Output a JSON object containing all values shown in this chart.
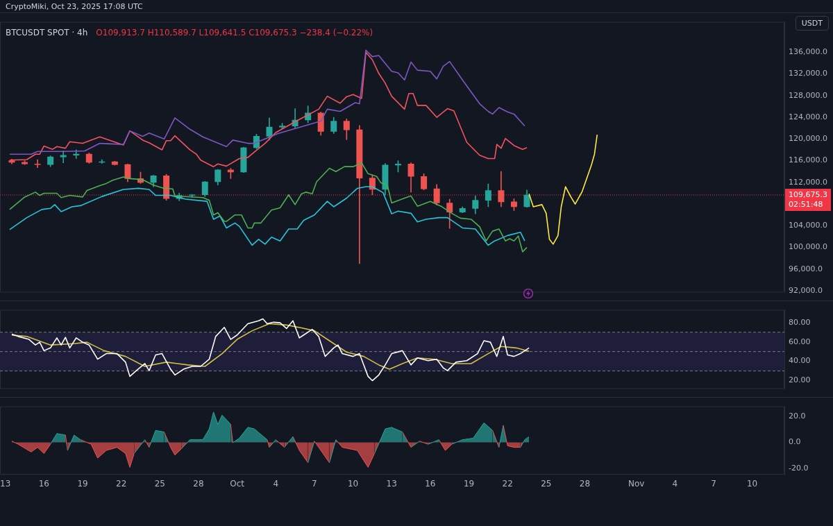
{
  "chart_data": [
    {
      "type": "candlestick",
      "title": "BTCUSDT SPOT · 4h",
      "subtitle": "CryptoMiki, Oct 23, 2025 17:08 UTC",
      "ylabel": "USDT",
      "annotations": [
        "O109,913.7 H110,589.7 L109,641.5 C109,675.3 −238.4 (−0.22%)",
        "02:51:48"
      ],
      "x": [
        "2025-09-13T12:00",
        "2025-09-14T12:00",
        "2025-09-15T12:00",
        "2025-09-16T12:00",
        "2025-09-17T12:00",
        "2025-09-18T12:00",
        "2025-09-19T12:00",
        "2025-09-20T12:00",
        "2025-09-21T12:00",
        "2025-09-22T12:00",
        "2025-09-23T12:00",
        "2025-09-24T12:00",
        "2025-09-25T12:00",
        "2025-09-26T12:00",
        "2025-09-27T12:00",
        "2025-09-28T12:00",
        "2025-09-29T12:00",
        "2025-09-30T12:00",
        "2025-10-01T12:00",
        "2025-10-02T12:00",
        "2025-10-03T12:00",
        "2025-10-04T12:00",
        "2025-10-05T12:00",
        "2025-10-06T12:00",
        "2025-10-07T12:00",
        "2025-10-08T12:00",
        "2025-10-09T12:00",
        "2025-10-10T12:00",
        "2025-10-11T12:00",
        "2025-10-12T12:00",
        "2025-10-13T12:00",
        "2025-10-14T12:00",
        "2025-10-15T12:00",
        "2025-10-16T12:00",
        "2025-10-17T12:00",
        "2025-10-18T12:00",
        "2025-10-19T12:00",
        "2025-10-20T12:00",
        "2025-10-21T12:00",
        "2025-10-22T12:00",
        "2025-10-23T12:00"
      ],
      "ohlc": [
        [
          116000,
          116300,
          115400,
          115700
        ],
        [
          115700,
          116000,
          115300,
          115400
        ],
        [
          115400,
          116200,
          114700,
          115300
        ],
        [
          115300,
          116900,
          114900,
          116700
        ],
        [
          116700,
          117800,
          115600,
          117000
        ],
        [
          117000,
          118000,
          116400,
          117200
        ],
        [
          117200,
          117400,
          115500,
          115700
        ],
        [
          115700,
          116200,
          115500,
          115800
        ],
        [
          115800,
          115900,
          115200,
          115300
        ],
        [
          115300,
          115400,
          112100,
          112700
        ],
        [
          112700,
          113900,
          111800,
          112000
        ],
        [
          112000,
          113300,
          111200,
          113200
        ],
        [
          113200,
          113500,
          108700,
          109000
        ],
        [
          109000,
          110000,
          108600,
          109600
        ],
        [
          109600,
          109800,
          109200,
          109700
        ],
        [
          109700,
          112200,
          109400,
          112100
        ],
        [
          112100,
          114400,
          111500,
          114300
        ],
        [
          114300,
          114600,
          112700,
          113900
        ],
        [
          113900,
          118500,
          113800,
          118400
        ],
        [
          118400,
          120900,
          118200,
          120500
        ],
        [
          120500,
          123900,
          119800,
          122200
        ],
        [
          122200,
          122900,
          121900,
          122400
        ],
        [
          122400,
          125600,
          122000,
          123500
        ],
        [
          123500,
          126100,
          123000,
          124800
        ],
        [
          124800,
          125000,
          120700,
          121400
        ],
        [
          121400,
          124000,
          121000,
          123300
        ],
        [
          123300,
          123700,
          119900,
          121700
        ],
        [
          121700,
          122500,
          97000,
          112800
        ],
        [
          112800,
          113400,
          109700,
          110700
        ],
        [
          110700,
          115500,
          109700,
          115200
        ],
        [
          115200,
          116000,
          113900,
          115400
        ],
        [
          115400,
          115600,
          110200,
          113100
        ],
        [
          113100,
          113600,
          110600,
          110800
        ],
        [
          110800,
          111600,
          107800,
          108200
        ],
        [
          108200,
          108900,
          103500,
          106500
        ],
        [
          106500,
          107500,
          106400,
          107200
        ],
        [
          107200,
          109500,
          106200,
          108700
        ],
        [
          108700,
          111700,
          107500,
          110500
        ],
        [
          110500,
          114000,
          107500,
          108400
        ],
        [
          108400,
          109000,
          106800,
          107500
        ],
        [
          107500,
          110600,
          107400,
          109675.3
        ]
      ],
      "colors": [
        "#ef5350",
        "#ef5350",
        "#ef5350",
        "#26a69a",
        "#26a69a",
        "#26a69a",
        "#ef5350",
        "#26a69a",
        "#ef5350",
        "#ef5350",
        "#ef5350",
        "#26a69a",
        "#ef5350",
        "#26a69a",
        "#26a69a",
        "#26a69a",
        "#26a69a",
        "#ef5350",
        "#26a69a",
        "#26a69a",
        "#26a69a",
        "#26a69a",
        "#26a69a",
        "#26a69a",
        "#ef5350",
        "#26a69a",
        "#ef5350",
        "#ef5350",
        "#ef5350",
        "#26a69a",
        "#26a69a",
        "#ef5350",
        "#ef5350",
        "#ef5350",
        "#ef5350",
        "#26a69a",
        "#26a69a",
        "#26a69a",
        "#ef5350",
        "#ef5350",
        "#26a69a"
      ],
      "series": [
        {
          "type": "line",
          "color": "#7e57c2",
          "x": [
            "2025-09-13T08:00",
            "2025-09-15T00:00",
            "2025-09-15T12:00",
            "2025-09-17T12:00",
            "2025-09-19T04:00",
            "2025-09-20T08:00",
            "2025-09-22T04:00",
            "2025-09-22T16:00",
            "2025-09-23T16:00",
            "2025-09-24T04:00",
            "2025-09-25T08:00",
            "2025-09-26T04:00",
            "2025-09-27T08:00",
            "2025-09-28T08:00",
            "2025-09-30T04:00",
            "2025-09-30T16:00",
            "2025-10-01T20:00",
            "2025-10-02T08:00",
            "2025-10-04T04:00",
            "2025-10-07T12:00",
            "2025-10-08T00:00",
            "2025-10-09T00:00",
            "2025-10-10T04:00",
            "2025-10-10T12:00",
            "2025-10-11T00:00",
            "2025-10-11T12:00",
            "2025-10-12T00:00",
            "2025-10-13T00:00",
            "2025-10-13T12:00",
            "2025-10-14T00:00",
            "2025-10-14T12:00",
            "2025-10-15T00:00",
            "2025-10-16T00:00",
            "2025-10-16T12:00",
            "2025-10-17T00:00",
            "2025-10-17T12:00",
            "2025-10-18T12:00",
            "2025-10-19T20:00",
            "2025-10-20T12:00",
            "2025-10-20T20:00",
            "2025-10-21T08:00",
            "2025-10-22T00:00",
            "2025-10-22T12:00",
            "2025-10-23T08:00"
          ],
          "values": [
            117200,
            117200,
            117700,
            117700,
            117800,
            119200,
            119000,
            121500,
            120500,
            121100,
            120000,
            123900,
            121800,
            120400,
            118600,
            119800,
            119200,
            119200,
            121000,
            123300,
            125500,
            125100,
            126700,
            126500,
            136400,
            135200,
            135400,
            132500,
            132200,
            130900,
            134200,
            132700,
            132500,
            131100,
            133400,
            134300,
            130900,
            126500,
            125100,
            124600,
            125800,
            125000,
            124600,
            122400
          ]
        },
        {
          "type": "line",
          "color": "#f7525f",
          "x": [
            "2025-09-13T08:00",
            "2025-09-14T16:00",
            "2025-09-15T08:00",
            "2025-09-15T16:00",
            "2025-09-16T00:00",
            "2025-09-16T16:00",
            "2025-09-17T00:00",
            "2025-09-17T16:00",
            "2025-09-18T00:00",
            "2025-09-19T00:00",
            "2025-09-20T08:00",
            "2025-09-22T04:00",
            "2025-09-22T16:00",
            "2025-09-23T16:00",
            "2025-09-24T04:00",
            "2025-09-25T04:00",
            "2025-09-25T12:00",
            "2025-09-25T20:00",
            "2025-09-26T04:00",
            "2025-09-27T08:00",
            "2025-09-27T20:00",
            "2025-09-28T04:00",
            "2025-09-29T04:00",
            "2025-09-29T12:00",
            "2025-09-30T04:00",
            "2025-10-01T04:00",
            "2025-10-01T20:00",
            "2025-10-02T08:00",
            "2025-10-03T04:00",
            "2025-10-04T00:00",
            "2025-10-05T16:00",
            "2025-10-07T08:00",
            "2025-10-08T00:00",
            "2025-10-09T00:00",
            "2025-10-09T12:00",
            "2025-10-10T00:00",
            "2025-10-10T16:00",
            "2025-10-11T00:00",
            "2025-10-11T12:00",
            "2025-10-12T00:00",
            "2025-10-12T12:00",
            "2025-10-13T00:00",
            "2025-10-14T00:00",
            "2025-10-14T08:00",
            "2025-10-14T16:00",
            "2025-10-15T00:00",
            "2025-10-15T16:00",
            "2025-10-16T12:00",
            "2025-10-17T08:00",
            "2025-10-17T20:00",
            "2025-10-18T20:00",
            "2025-10-19T20:00",
            "2025-10-20T12:00",
            "2025-10-21T00:00",
            "2025-10-21T04:00",
            "2025-10-21T12:00",
            "2025-10-21T20:00",
            "2025-10-22T12:00",
            "2025-10-23T04:00",
            "2025-10-23T12:00"
          ],
          "values": [
            116100,
            116200,
            117200,
            117200,
            118700,
            118100,
            118600,
            118300,
            119500,
            119200,
            120400,
            118900,
            121500,
            119800,
            119300,
            118000,
            119700,
            119700,
            120600,
            118000,
            117200,
            116100,
            114900,
            115400,
            115000,
            116400,
            116600,
            117600,
            119200,
            121200,
            123400,
            125500,
            127900,
            126600,
            127800,
            128200,
            127500,
            136000,
            134600,
            132100,
            130300,
            127900,
            125500,
            128400,
            128400,
            126200,
            126200,
            124000,
            125600,
            125200,
            119400,
            117000,
            116400,
            116400,
            119000,
            118300,
            120100,
            118800,
            118100,
            118400
          ]
        },
        {
          "type": "line",
          "color": "#4caf50",
          "x": [
            "2025-09-13T08:00",
            "2025-09-14T12:00",
            "2025-09-15T08:00",
            "2025-09-15T16:00",
            "2025-09-16T00:00",
            "2025-09-17T00:00",
            "2025-09-17T08:00",
            "2025-09-18T00:00",
            "2025-09-19T00:00",
            "2025-09-19T08:00",
            "2025-09-20T08:00",
            "2025-09-20T20:00",
            "2025-09-21T08:00",
            "2025-09-22T04:00",
            "2025-09-22T16:00",
            "2025-09-23T16:00",
            "2025-09-24T12:00",
            "2025-09-25T08:00",
            "2025-09-26T00:00",
            "2025-09-26T04:00",
            "2025-09-28T08:00",
            "2025-09-28T20:00",
            "2025-09-29T04:00",
            "2025-09-29T12:00",
            "2025-09-30T00:00",
            "2025-09-30T04:00",
            "2025-09-30T20:00",
            "2025-10-01T08:00",
            "2025-10-01T20:00",
            "2025-10-02T04:00",
            "2025-10-02T08:00",
            "2025-10-02T20:00",
            "2025-10-03T16:00",
            "2025-10-04T08:00",
            "2025-10-05T00:00",
            "2025-10-05T12:00",
            "2025-10-06T00:00",
            "2025-10-06T08:00",
            "2025-10-06T20:00",
            "2025-10-07T04:00",
            "2025-10-08T04:00",
            "2025-10-08T16:00",
            "2025-10-09T08:00",
            "2025-10-10T00:00",
            "2025-10-10T16:00",
            "2025-10-11T04:00",
            "2025-10-11T20:00",
            "2025-10-12T04:00",
            "2025-10-12T16:00",
            "2025-10-13T00:00",
            "2025-10-14T00:00",
            "2025-10-14T12:00",
            "2025-10-15T00:00",
            "2025-10-16T00:00",
            "2025-10-16T20:00",
            "2025-10-17T16:00",
            "2025-10-18T08:00",
            "2025-10-19T04:00",
            "2025-10-19T20:00",
            "2025-10-20T08:00",
            "2025-10-20T20:00",
            "2025-10-21T08:00",
            "2025-10-21T20:00",
            "2025-10-22T04:00",
            "2025-10-22T12:00",
            "2025-10-22T20:00",
            "2025-10-23T04:00",
            "2025-10-23T12:00"
          ],
          "values": [
            107000,
            109300,
            110200,
            109600,
            110000,
            110000,
            109200,
            109600,
            109300,
            110500,
            111400,
            111800,
            112400,
            113000,
            112700,
            112500,
            111500,
            110900,
            110800,
            109500,
            109200,
            108700,
            106000,
            106400,
            104800,
            104800,
            106000,
            106000,
            103600,
            103600,
            104500,
            104500,
            106900,
            107300,
            109700,
            107900,
            109900,
            110200,
            109900,
            112100,
            114600,
            114000,
            114900,
            114900,
            115600,
            113600,
            113100,
            111900,
            111500,
            108200,
            109100,
            109500,
            107600,
            108500,
            107600,
            106300,
            105400,
            105200,
            103800,
            101200,
            103000,
            103400,
            101200,
            101600,
            101200,
            102100,
            99200,
            100000
          ]
        },
        {
          "type": "line",
          "color": "#26c6da",
          "x": [
            "2025-09-13T08:00",
            "2025-09-14T16:00",
            "2025-09-15T20:00",
            "2025-09-16T12:00",
            "2025-09-16T20:00",
            "2025-09-17T08:00",
            "2025-09-18T04:00",
            "2025-09-18T20:00",
            "2025-09-20T12:00",
            "2025-09-22T04:00",
            "2025-09-23T08:00",
            "2025-09-24T04:00",
            "2025-09-24T16:00",
            "2025-09-25T20:00",
            "2025-09-27T00:00",
            "2025-09-28T16:00",
            "2025-09-29T04:00",
            "2025-09-29T16:00",
            "2025-09-30T04:00",
            "2025-09-30T20:00",
            "2025-10-01T04:00",
            "2025-10-02T04:00",
            "2025-10-02T16:00",
            "2025-10-03T04:00",
            "2025-10-03T16:00",
            "2025-10-04T08:00",
            "2025-10-05T00:00",
            "2025-10-05T16:00",
            "2025-10-06T04:00",
            "2025-10-07T00:00",
            "2025-10-08T00:00",
            "2025-10-08T12:00",
            "2025-10-09T12:00",
            "2025-10-10T08:00",
            "2025-10-11T00:00",
            "2025-10-11T12:00",
            "2025-10-12T08:00",
            "2025-10-13T00:00",
            "2025-10-13T12:00",
            "2025-10-14T12:00",
            "2025-10-15T00:00",
            "2025-10-15T16:00",
            "2025-10-16T16:00",
            "2025-10-17T08:00",
            "2025-10-18T12:00",
            "2025-10-19T12:00",
            "2025-10-20T12:00",
            "2025-10-21T00:00",
            "2025-10-22T00:00",
            "2025-10-23T00:00",
            "2025-10-23T08:00"
          ],
          "values": [
            103300,
            105500,
            107000,
            107200,
            107900,
            106600,
            107500,
            107700,
            109400,
            110700,
            110900,
            110700,
            109600,
            109600,
            108900,
            108500,
            105200,
            105800,
            103600,
            104500,
            103900,
            100400,
            101500,
            100600,
            101900,
            101200,
            103400,
            103400,
            105000,
            106000,
            108500,
            107500,
            109100,
            110900,
            111200,
            111200,
            110100,
            106200,
            106700,
            106300,
            104700,
            105200,
            105500,
            105500,
            103600,
            103400,
            100400,
            101200,
            102200,
            102800,
            101200
          ]
        },
        {
          "type": "line",
          "color": "#ffeb3b",
          "x": [
            "2025-10-23T16:00",
            "2025-10-24T00:00",
            "2025-10-24T16:00",
            "2025-10-25T00:00",
            "2025-10-25T06:00",
            "2025-10-25T13:00",
            "2025-10-25T22:00",
            "2025-10-26T04:00",
            "2025-10-26T12:00",
            "2025-10-26T21:00",
            "2025-10-27T06:00",
            "2025-10-27T19:00",
            "2025-10-28T12:00",
            "2025-10-28T18:00",
            "2025-10-28T23:00"
          ],
          "values": [
            109900,
            107500,
            107900,
            106300,
            101500,
            100600,
            102200,
            107500,
            111200,
            109500,
            108000,
            110300,
            115100,
            117200,
            120800
          ]
        }
      ],
      "ref_lines": [
        {
          "axis": "y",
          "value": 109675.3,
          "label": "109,675.3",
          "color": "#f23645",
          "line_style": "dotted"
        }
      ],
      "xlim": [
        "2025-09-12T14:00",
        "2025-11-12T12:00"
      ],
      "ylim": [
        91700,
        141600
      ],
      "yticks": [
        {
          "value": 92000,
          "label": "92,000.0"
        },
        {
          "value": 96000,
          "label": "96,000.0"
        },
        {
          "value": 100000,
          "label": "100,000.0"
        },
        {
          "value": 104000,
          "label": "104,000.0"
        },
        {
          "value": 112000,
          "label": "112,000.0"
        },
        {
          "value": 116000,
          "label": "116,000.0"
        },
        {
          "value": 120000,
          "label": "120,000.0"
        },
        {
          "value": 124000,
          "label": "124,000.0"
        },
        {
          "value": 128000,
          "label": "128,000.0"
        },
        {
          "value": 132000,
          "label": "132,000.0"
        },
        {
          "value": 136000,
          "label": "136,000.0"
        }
      ],
      "tick_labels": "y"
    },
    {
      "type": "line",
      "series": [
        {
          "color": "#ffffff",
          "x": [
            "2025-09-13T12:00",
            "2025-09-14T00:00",
            "2025-09-14T20:00",
            "2025-09-15T08:00",
            "2025-09-15T16:00",
            "2025-09-16T00:00",
            "2025-09-16T12:00",
            "2025-09-17T00:00",
            "2025-09-17T08:00",
            "2025-09-17T16:00",
            "2025-09-18T00:00",
            "2025-09-18T12:00",
            "2025-09-19T00:00",
            "2025-09-19T12:00",
            "2025-09-20T04:00",
            "2025-09-20T20:00",
            "2025-09-21T16:00",
            "2025-09-22T08:00",
            "2025-09-22T16:00",
            "2025-09-23T04:00",
            "2025-09-23T20:00",
            "2025-09-24T04:00",
            "2025-09-24T16:00",
            "2025-09-25T04:00",
            "2025-09-25T20:00",
            "2025-09-26T04:00",
            "2025-09-26T20:00",
            "2025-09-27T12:00",
            "2025-09-28T04:00",
            "2025-09-28T20:00",
            "2025-09-29T08:00",
            "2025-09-30T00:00",
            "2025-09-30T12:00",
            "2025-10-01T00:00",
            "2025-10-01T20:00",
            "2025-10-02T16:00",
            "2025-10-03T00:00",
            "2025-10-03T08:00",
            "2025-10-03T20:00",
            "2025-10-04T08:00",
            "2025-10-04T20:00",
            "2025-10-05T08:00",
            "2025-10-05T20:00",
            "2025-10-06T04:00",
            "2025-10-06T20:00",
            "2025-10-07T08:00",
            "2025-10-07T20:00",
            "2025-10-08T12:00",
            "2025-10-08T20:00",
            "2025-10-09T04:00",
            "2025-10-10T00:00",
            "2025-10-10T12:00",
            "2025-10-10T20:00",
            "2025-10-11T04:00",
            "2025-10-11T12:00",
            "2025-10-12T00:00",
            "2025-10-12T12:00",
            "2025-10-13T00:00",
            "2025-10-13T20:00",
            "2025-10-14T12:00",
            "2025-10-15T00:00",
            "2025-10-15T20:00",
            "2025-10-16T12:00",
            "2025-10-17T00:00",
            "2025-10-17T08:00",
            "2025-10-18T00:00",
            "2025-10-18T20:00",
            "2025-10-19T16:00",
            "2025-10-20T04:00",
            "2025-10-20T16:00",
            "2025-10-21T04:00",
            "2025-10-21T16:00",
            "2025-10-22T00:00",
            "2025-10-22T12:00",
            "2025-10-23T00:00",
            "2025-10-23T16:00"
          ],
          "values": [
            68,
            65.6,
            62.6,
            56.8,
            59.7,
            50.9,
            53.8,
            64.1,
            56.8,
            64.7,
            53.8,
            64.1,
            59.7,
            56.8,
            42.1,
            47.9,
            47.9,
            39.1,
            24.4,
            30.3,
            37.6,
            30.3,
            46.5,
            47.9,
            31.8,
            25.9,
            31.8,
            34.7,
            34.7,
            42.1,
            65.6,
            75,
            62.6,
            67.1,
            78.8,
            81.8,
            83.8,
            78.8,
            80.3,
            79.7,
            73.8,
            81.8,
            64.1,
            67.1,
            72.9,
            65.6,
            45,
            53.8,
            56.8,
            47.9,
            45,
            47.9,
            36.2,
            24.4,
            20,
            25.9,
            36.2,
            47.9,
            50.9,
            36.2,
            43.5,
            40.6,
            42.1,
            33.2,
            30.3,
            39.1,
            40.6,
            47.9,
            61.2,
            59.7,
            45,
            65.6,
            46.5,
            45,
            47.9,
            53.8
          ]
        },
        {
          "color": "#d4bf45",
          "x": [
            "2025-09-13T12:00",
            "2025-09-14T16:00",
            "2025-09-16T12:00",
            "2025-09-18T08:00",
            "2025-09-19T08:00",
            "2025-09-20T16:00",
            "2025-09-22T08:00",
            "2025-09-23T20:00",
            "2025-09-25T12:00",
            "2025-09-27T04:00",
            "2025-09-28T12:00",
            "2025-09-29T20:00",
            "2025-10-01T00:00",
            "2025-10-02T04:00",
            "2025-10-03T12:00",
            "2025-10-04T20:00",
            "2025-10-06T00:00",
            "2025-10-07T00:00",
            "2025-10-08T04:00",
            "2025-10-09T12:00",
            "2025-10-10T20:00",
            "2025-10-12T00:00",
            "2025-10-12T20:00",
            "2025-10-13T20:00",
            "2025-10-15T00:00",
            "2025-10-16T08:00",
            "2025-10-17T16:00",
            "2025-10-19T04:00",
            "2025-10-20T12:00",
            "2025-10-21T12:00",
            "2025-10-22T16:00",
            "2025-10-23T16:00"
          ],
          "values": [
            67,
            65.6,
            56.8,
            58.2,
            59.7,
            50.9,
            45,
            34.7,
            39.1,
            36.2,
            34.7,
            47.9,
            62.6,
            71.5,
            78.8,
            77.4,
            74.4,
            71.5,
            61.2,
            49.4,
            45,
            36.2,
            31.8,
            37.6,
            43.5,
            42.1,
            37.6,
            37.6,
            47.9,
            55.3,
            53.8,
            50.3
          ]
        }
      ],
      "bands": [
        {
          "axis": "y",
          "from": 30,
          "to": 70,
          "color": "#1e1d3a"
        }
      ],
      "ref_lines": [
        {
          "axis": "y",
          "value": 70,
          "color": "#787b86",
          "line_style": "dashed"
        },
        {
          "axis": "y",
          "value": 50,
          "color": "#787b86",
          "line_style": "dashed"
        },
        {
          "axis": "y",
          "value": 30,
          "color": "#787b86",
          "line_style": "dashed"
        }
      ],
      "xlim": [
        "2025-09-12T14:00",
        "2025-11-12T12:00"
      ],
      "ylim": [
        11.5,
        93
      ],
      "yticks": [
        {
          "value": 20,
          "label": "20.00"
        },
        {
          "value": 40,
          "label": "40.00"
        },
        {
          "value": 60,
          "label": "60.00"
        },
        {
          "value": 80,
          "label": "80.00"
        }
      ],
      "tick_labels": "y"
    },
    {
      "type": "area",
      "series": [
        {
          "x": [
            "2025-09-13T12:00",
            "2025-09-14T00:00",
            "2025-09-15T00:00",
            "2025-09-15T12:00",
            "2025-09-16T00:00",
            "2025-09-16T12:00",
            "2025-09-17T00:00",
            "2025-09-17T16:00",
            "2025-09-17T20:00",
            "2025-09-18T08:00",
            "2025-09-18T20:00",
            "2025-09-19T16:00",
            "2025-09-20T04:00",
            "2025-09-20T20:00",
            "2025-09-21T16:00",
            "2025-09-22T08:00",
            "2025-09-22T16:00",
            "2025-09-23T00:00",
            "2025-09-23T20:00",
            "2025-09-24T04:00",
            "2025-09-24T16:00",
            "2025-09-25T08:00",
            "2025-09-25T20:00",
            "2025-09-26T04:00",
            "2025-09-26T16:00",
            "2025-09-27T08:00",
            "2025-09-28T08:00",
            "2025-09-28T20:00",
            "2025-09-29T04:00",
            "2025-09-29T12:00",
            "2025-09-29T20:00",
            "2025-09-30T12:00",
            "2025-09-30T16:00",
            "2025-10-01T04:00",
            "2025-10-01T20:00",
            "2025-10-02T08:00",
            "2025-10-03T08:00",
            "2025-10-03T12:00",
            "2025-10-04T00:00",
            "2025-10-04T16:00",
            "2025-10-05T08:00",
            "2025-10-05T20:00",
            "2025-10-06T12:00",
            "2025-10-07T00:00",
            "2025-10-07T16:00",
            "2025-10-08T04:00",
            "2025-10-08T16:00",
            "2025-10-09T04:00",
            "2025-10-10T08:00",
            "2025-10-11T04:00",
            "2025-10-11T16:00",
            "2025-10-12T12:00",
            "2025-10-13T00:00",
            "2025-10-13T20:00",
            "2025-10-14T12:00",
            "2025-10-15T04:00",
            "2025-10-15T20:00",
            "2025-10-16T16:00",
            "2025-10-17T04:00",
            "2025-10-17T16:00",
            "2025-10-18T12:00",
            "2025-10-19T08:00",
            "2025-10-20T04:00",
            "2025-10-20T20:00",
            "2025-10-21T08:00",
            "2025-10-21T16:00",
            "2025-10-22T00:00",
            "2025-10-22T12:00",
            "2025-10-23T00:00",
            "2025-10-23T08:00",
            "2025-10-23T16:00"
          ],
          "values": [
            1,
            -1.4,
            -7.4,
            -3.8,
            -8.6,
            -1.4,
            6.9,
            5.7,
            -6.2,
            5.7,
            2.1,
            -1.4,
            -12.1,
            -6.2,
            -3.8,
            -8.6,
            -19.3,
            -8.6,
            2.1,
            -3.8,
            9.3,
            8.1,
            -3.8,
            -9.8,
            -5,
            2.1,
            2.1,
            10.5,
            23.6,
            14,
            21.2,
            14,
            -0.2,
            3.3,
            11.7,
            10.5,
            2.1,
            -3.8,
            2.1,
            -3.8,
            4.5,
            -6.2,
            -15.7,
            1,
            -8.6,
            -15.7,
            2.1,
            -3.8,
            -6.2,
            -19.3,
            -8.6,
            10.5,
            11.7,
            8.1,
            -3.8,
            1,
            -1.4,
            2.1,
            -6.2,
            -1.4,
            2.1,
            3.3,
            15.2,
            9.3,
            -3.8,
            13.3,
            -2.6,
            -3.8,
            -3.8,
            2.1,
            4.5
          ],
          "colors": [
            "#26a69a",
            "#ef5350",
            "#ef5350",
            "#ef5350",
            "#ef5350",
            "#ef5350",
            "#26a69a",
            "#26a69a",
            "#ef5350",
            "#26a69a",
            "#26a69a",
            "#ef5350",
            "#ef5350",
            "#ef5350",
            "#ef5350",
            "#ef5350",
            "#ef5350",
            "#ef5350",
            "#26a69a",
            "#ef5350",
            "#26a69a",
            "#26a69a",
            "#ef5350",
            "#ef5350",
            "#ef5350",
            "#26a69a",
            "#26a69a",
            "#26a69a",
            "#26a69a",
            "#26a69a",
            "#26a69a",
            "#26a69a",
            "#ef5350",
            "#26a69a",
            "#26a69a",
            "#26a69a",
            "#26a69a",
            "#ef5350",
            "#26a69a",
            "#ef5350",
            "#26a69a",
            "#ef5350",
            "#ef5350",
            "#26a69a",
            "#ef5350",
            "#ef5350",
            "#26a69a",
            "#ef5350",
            "#ef5350",
            "#ef5350",
            "#ef5350",
            "#26a69a",
            "#26a69a",
            "#26a69a",
            "#ef5350",
            "#26a69a",
            "#ef5350",
            "#26a69a",
            "#ef5350",
            "#ef5350",
            "#26a69a",
            "#26a69a",
            "#26a69a",
            "#26a69a",
            "#ef5350",
            "#26a69a",
            "#ef5350",
            "#ef5350",
            "#ef5350",
            "#26a69a",
            "#26a69a"
          ]
        }
      ],
      "xlim": [
        "2025-09-12T14:00",
        "2025-11-12T12:00"
      ],
      "ylim": [
        -25,
        28
      ],
      "xticks": [
        {
          "value": "2025-09-13",
          "label": "13"
        },
        {
          "value": "2025-09-16",
          "label": "16"
        },
        {
          "value": "2025-09-19",
          "label": "19"
        },
        {
          "value": "2025-09-22",
          "label": "22"
        },
        {
          "value": "2025-09-25",
          "label": "25"
        },
        {
          "value": "2025-09-28",
          "label": "28"
        },
        {
          "value": "2025-10-01",
          "label": "Oct"
        },
        {
          "value": "2025-10-04",
          "label": "4"
        },
        {
          "value": "2025-10-07",
          "label": "7"
        },
        {
          "value": "2025-10-10",
          "label": "10"
        },
        {
          "value": "2025-10-13",
          "label": "13"
        },
        {
          "value": "2025-10-16",
          "label": "16"
        },
        {
          "value": "2025-10-19",
          "label": "19"
        },
        {
          "value": "2025-10-22",
          "label": "22"
        },
        {
          "value": "2025-10-25",
          "label": "25"
        },
        {
          "value": "2025-10-28",
          "label": "28"
        },
        {
          "value": "2025-11-01",
          "label": "Nov"
        },
        {
          "value": "2025-11-04",
          "label": "4"
        },
        {
          "value": "2025-11-07",
          "label": "7"
        },
        {
          "value": "2025-11-10",
          "label": "10"
        }
      ],
      "yticks": [
        {
          "value": -20,
          "label": "-20.0"
        },
        {
          "value": 0,
          "label": "0.0"
        },
        {
          "value": 20,
          "label": "20.0"
        }
      ]
    }
  ]
}
